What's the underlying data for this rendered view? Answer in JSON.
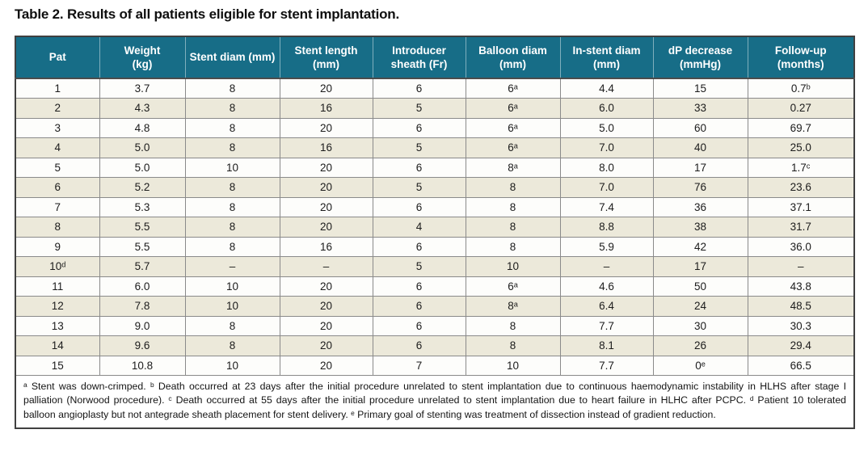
{
  "page": {
    "title": "Table 2. Results of all patients eligible for stent implantation."
  },
  "colors": {
    "header_bg": "#176d87",
    "header_text": "#ffffff",
    "row_odd_bg": "#fdfdfb",
    "row_even_bg": "#ece9da",
    "grid_line": "#8a8a8a",
    "outer_border": "#404040",
    "body_text": "#1c1c1c"
  },
  "table": {
    "columns": [
      {
        "label": "Pat"
      },
      {
        "label": "Weight\n(kg)"
      },
      {
        "label": "Stent diam (mm)"
      },
      {
        "label": "Stent length\n(mm)"
      },
      {
        "label": "Introducer\nsheath (Fr)"
      },
      {
        "label": "Balloon diam\n(mm)"
      },
      {
        "label": "In-stent diam\n(mm)"
      },
      {
        "label": "dP decrease\n(mmHg)"
      },
      {
        "label": "Follow-up\n(months)"
      }
    ],
    "rows": [
      [
        "1",
        "3.7",
        "8",
        "20",
        "6",
        "6ᵃ",
        "4.4",
        "15",
        "0.7ᵇ"
      ],
      [
        "2",
        "4.3",
        "8",
        "16",
        "5",
        "6ᵃ",
        "6.0",
        "33",
        "0.27"
      ],
      [
        "3",
        "4.8",
        "8",
        "20",
        "6",
        "6ᵃ",
        "5.0",
        "60",
        "69.7"
      ],
      [
        "4",
        "5.0",
        "8",
        "16",
        "5",
        "6ᵃ",
        "7.0",
        "40",
        "25.0"
      ],
      [
        "5",
        "5.0",
        "10",
        "20",
        "6",
        "8ᵃ",
        "8.0",
        "17",
        "1.7ᶜ"
      ],
      [
        "6",
        "5.2",
        "8",
        "20",
        "5",
        "8",
        "7.0",
        "76",
        "23.6"
      ],
      [
        "7",
        "5.3",
        "8",
        "20",
        "6",
        "8",
        "7.4",
        "36",
        "37.1"
      ],
      [
        "8",
        "5.5",
        "8",
        "20",
        "4",
        "8",
        "8.8",
        "38",
        "31.7"
      ],
      [
        "9",
        "5.5",
        "8",
        "16",
        "6",
        "8",
        "5.9",
        "42",
        "36.0"
      ],
      [
        "10ᵈ",
        "5.7",
        "–",
        "–",
        "5",
        "10",
        "–",
        "17",
        "–"
      ],
      [
        "11",
        "6.0",
        "10",
        "20",
        "6",
        "6ᵃ",
        "4.6",
        "50",
        "43.8"
      ],
      [
        "12",
        "7.8",
        "10",
        "20",
        "6",
        "8ᵃ",
        "6.4",
        "24",
        "48.5"
      ],
      [
        "13",
        "9.0",
        "8",
        "20",
        "6",
        "8",
        "7.7",
        "30",
        "30.3"
      ],
      [
        "14",
        "9.6",
        "8",
        "20",
        "6",
        "8",
        "8.1",
        "26",
        "29.4"
      ],
      [
        "15",
        "10.8",
        "10",
        "20",
        "7",
        "10",
        "7.7",
        "0ᵉ",
        "66.5"
      ]
    ],
    "footnote": "ᵃ Stent was down-crimped. ᵇ Death occurred at 23 days after the initial procedure unrelated to stent implantation due to continuous haemodynamic instability in HLHS after stage I palliation (Norwood procedure). ᶜ Death occurred at 55 days after the initial procedure unrelated to stent implantation due to heart failure in HLHC after PCPC. ᵈ Patient 10 tolerated balloon angioplasty but not antegrade sheath placement for stent delivery. ᵉ Primary goal of stenting was treatment of dissection instead of gradient reduction."
  }
}
